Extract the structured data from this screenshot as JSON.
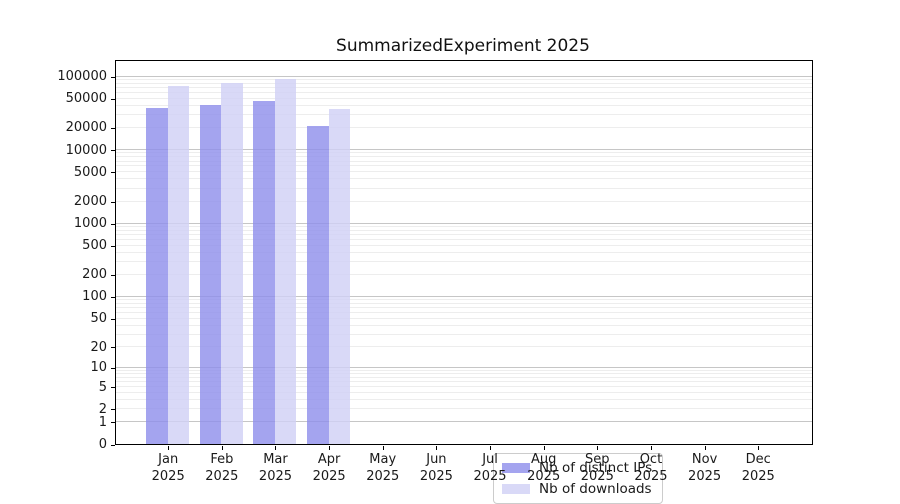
{
  "chart_data": {
    "type": "bar",
    "title": "SummarizedExperiment 2025",
    "categories": [
      "Jan",
      "Feb",
      "Mar",
      "Apr",
      "May",
      "Jun",
      "Jul",
      "Aug",
      "Sep",
      "Oct",
      "Nov",
      "Dec"
    ],
    "category_year": "2025",
    "series": [
      {
        "name": "Nb of distinct IPs",
        "color": "rgba(141,141,235,0.8)",
        "values": [
          36500,
          40800,
          45700,
          20900,
          null,
          null,
          null,
          null,
          null,
          null,
          null,
          null
        ]
      },
      {
        "name": "Nb of downloads",
        "color": "rgba(208,208,245,0.8)",
        "values": [
          73000,
          80500,
          92500,
          35500,
          null,
          null,
          null,
          null,
          null,
          null,
          null,
          null
        ]
      }
    ],
    "y_ticks": [
      100000,
      50000,
      20000,
      10000,
      5000,
      2000,
      1000,
      500,
      200,
      100,
      50,
      20,
      10,
      5,
      2,
      1,
      0
    ],
    "y_scale": "log10(value+1)",
    "y_max": 160000,
    "xlabel": "",
    "ylabel": "",
    "grid": "horizontal major and minor gridlines",
    "legend_position": "lower center inside plot"
  },
  "colors": {
    "bar_distinct_ips": "rgba(141,141,235,0.8)",
    "bar_downloads": "rgba(208,208,245,0.8)",
    "major_grid": "#c6c6c6",
    "minor_grid": "#ededed",
    "axis": "#000000",
    "legend_border": "#cccccc",
    "background": "#ffffff"
  }
}
